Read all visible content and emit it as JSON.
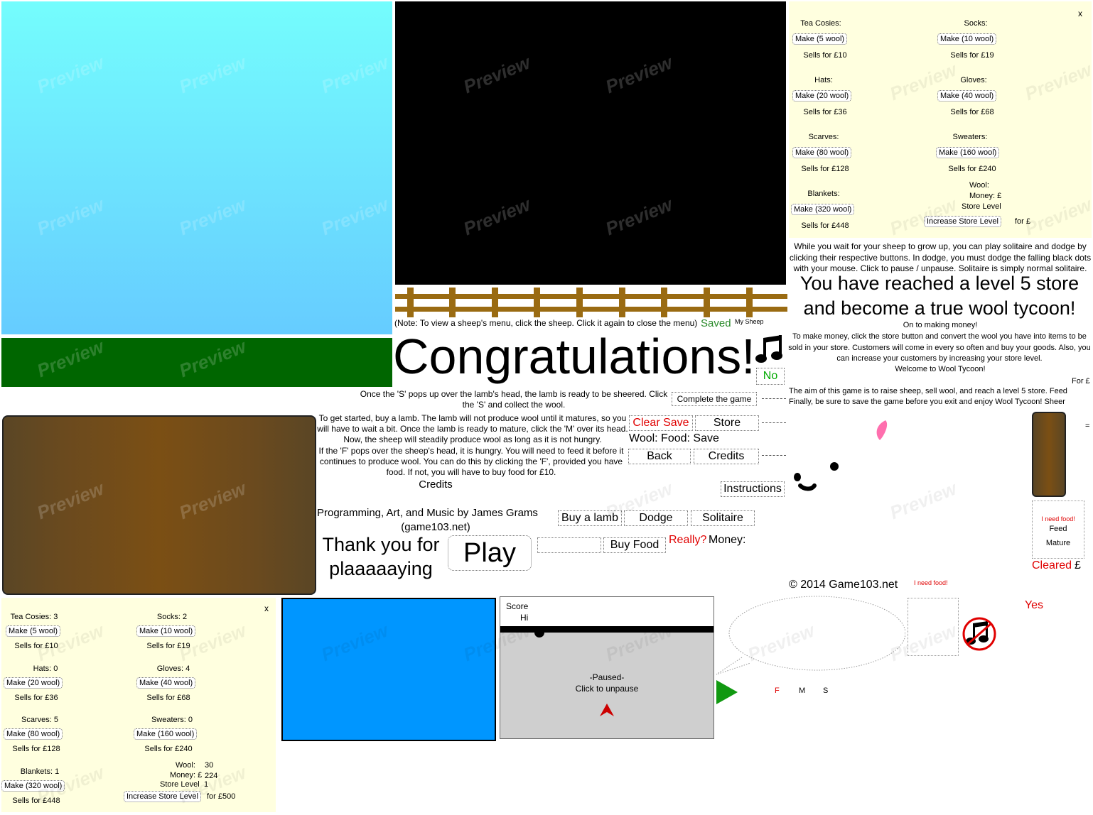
{
  "store_top": {
    "close": "x",
    "tea_cosies": {
      "label": "Tea Cosies:",
      "make": "Make (5 wool)",
      "sells": "Sells for £10"
    },
    "socks": {
      "label": "Socks:",
      "make": "Make (10 wool)",
      "sells": "Sells for £19"
    },
    "hats": {
      "label": "Hats:",
      "make": "Make (20 wool)",
      "sells": "Sells for £36"
    },
    "gloves": {
      "label": "Gloves:",
      "make": "Make (40 wool)",
      "sells": "Sells for £68"
    },
    "scarves": {
      "label": "Scarves:",
      "make": "Make (80 wool)",
      "sells": "Sells for £128"
    },
    "sweaters": {
      "label": "Sweaters:",
      "make": "Make (160 wool)",
      "sells": "Sells for £240"
    },
    "blankets": {
      "label": "Blankets:",
      "make": "Make (320 wool)",
      "sells": "Sells for £448"
    },
    "wool": "Wool:",
    "money": "Money: £",
    "store_level": "Store Level",
    "increase": "Increase Store Level",
    "for": "for £"
  },
  "store_bottom": {
    "close": "x",
    "tea_cosies": {
      "label": "Tea Cosies: 3",
      "make": "Make (5 wool)",
      "sells": "Sells for £10"
    },
    "socks": {
      "label": "Socks: 2",
      "make": "Make (10 wool)",
      "sells": "Sells for £19"
    },
    "hats": {
      "label": "Hats: 0",
      "make": "Make (20 wool)",
      "sells": "Sells for £36"
    },
    "gloves": {
      "label": "Gloves: 4",
      "make": "Make (40 wool)",
      "sells": "Sells for £68"
    },
    "scarves": {
      "label": "Scarves: 5",
      "make": "Make (80 wool)",
      "sells": "Sells for £128"
    },
    "sweaters": {
      "label": "Sweaters: 0",
      "make": "Make (160 wool)",
      "sells": "Sells for £240"
    },
    "blankets": {
      "label": "Blankets: 1",
      "make": "Make (320 wool)",
      "sells": "Sells for £448"
    },
    "wool_label": "Wool:",
    "wool_value": "30",
    "money_label": "Money: £",
    "money_value": "224",
    "level_label": "Store Level",
    "level_value": "1",
    "increase": "Increase Store Level",
    "for": "for £500"
  },
  "texts": {
    "note": "(Note: To view a sheep's menu, click the sheep. Click it again to close the menu)",
    "saved": "Saved",
    "my_sheep": "My Sheep",
    "congrats": "Congratulations!",
    "no": "No",
    "instr_s": "Once the 'S' pops up over the lamb's head, the lamb is ready to be sheered. Click the 'S' and collect the wool.",
    "instr_start": "To get started, buy a lamb. The lamb will not produce wool until it matures, so you will have to wait a bit. Once the lamb is ready to mature, click the 'M' over its head. Now, the sheep will steadily produce wool as long as it is not hungry.",
    "instr_f": "If the 'F' pops over the sheep's head, it is hungry. You will need to feed it before it continues to produce wool. You can do this by clicking the 'F', provided you have food. If not, you will have to buy food for £10.",
    "credits_heading": "Credits",
    "programming": "Programming, Art, and Music by James Grams",
    "site": "(game103.net)",
    "thanks_line1": "Thank you for",
    "thanks_line2": "plaaaaaying",
    "while_wait": "While you wait for your sheep to grow up, you can play solitaire and dodge by clicking their respective buttons. In dodge, you must dodge the falling black dots with your mouse. Click to pause / unpause. Solitaire is simply normal solitaire.",
    "level5": "You have reached a level 5 store and become a true wool tycoon!",
    "making_money_title": "On to making money!",
    "making_money": "To make money, click the store button and convert the wool you have into items to be sold in your store. Customers will come in every so often and buy your goods. Also, you can increase your customers by increasing your store level.",
    "welcome": "Welcome to Wool Tycoon!",
    "for_pound": "For £",
    "aim": "The aim of this game is to raise sheep, sell wool, and reach a level 5 store. Feed",
    "finally": "Finally, be sure to save the game before you exit and enjoy Wool Tycoon! Sheer",
    "wool_food_save": "Wool: Food: Save",
    "really": "Really?",
    "money": "Money:",
    "copyright": "© 2014 Game103.net",
    "need_food_small": "I need food!",
    "need_food": "I need food!",
    "feed": "Feed",
    "mature_sheer": "Mature",
    "cleared": "Cleared",
    "pound": "£",
    "yes": "Yes",
    "equals": "=",
    "f": "F",
    "m": "M",
    "s": "S"
  },
  "buttons": {
    "complete": "Complete the game",
    "clear_save": "Clear Save",
    "store": "Store",
    "back": "Back",
    "credits": "Credits",
    "instructions": "Instructions",
    "buy_lamb": "Buy a lamb",
    "dodge": "Dodge",
    "solitaire": "Solitaire",
    "play": "Play",
    "buy_food": "Buy Food"
  },
  "dodge": {
    "score": "Score",
    "hi": "Hi",
    "paused": "-Paused-",
    "unpause": "Click to unpause"
  },
  "watermark": "Preview",
  "colors": {
    "sky_top": "#74fdfd",
    "sky_bottom": "#66ccff",
    "grass": "#006600",
    "panel": "#ffffdf",
    "fence": "#9a6b12",
    "red": "#ff0000",
    "green": "#00aa00",
    "blue_screen": "#0096ff"
  }
}
